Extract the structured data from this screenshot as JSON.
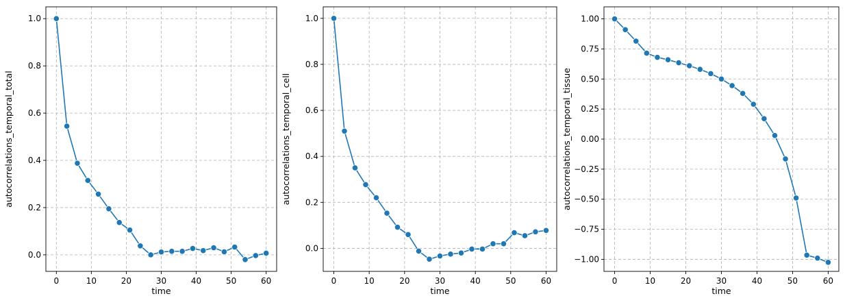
{
  "colors": {
    "series": "#1f77b4",
    "grid": "#b0b0b0"
  },
  "chart_data": [
    {
      "type": "line",
      "title": "",
      "xlabel": "time",
      "ylabel": "autocorrelations_temporal_total",
      "xlim": [
        -3,
        63
      ],
      "ylim": [
        -0.07,
        1.05
      ],
      "xticks": [
        0,
        10,
        20,
        30,
        40,
        50,
        60
      ],
      "xtick_labels": [
        "0",
        "10",
        "20",
        "30",
        "40",
        "50",
        "60"
      ],
      "yticks": [
        0.0,
        0.2,
        0.4,
        0.6,
        0.8,
        1.0
      ],
      "ytick_labels": [
        "0.0",
        "0.2",
        "0.4",
        "0.6",
        "0.8",
        "1.0"
      ],
      "grid": true,
      "marker": "circle",
      "x": [
        0,
        3,
        6,
        9,
        12,
        15,
        18,
        21,
        24,
        27,
        30,
        33,
        36,
        39,
        42,
        45,
        48,
        51,
        54,
        57,
        60
      ],
      "y": [
        1.0,
        0.545,
        0.388,
        0.315,
        0.257,
        0.195,
        0.137,
        0.105,
        0.038,
        0.0,
        0.012,
        0.015,
        0.015,
        0.027,
        0.018,
        0.03,
        0.013,
        0.033,
        -0.02,
        -0.003,
        0.007
      ]
    },
    {
      "type": "line",
      "title": "",
      "xlabel": "time",
      "ylabel": "autocorrelations_temporal_cell",
      "xlim": [
        -3,
        63
      ],
      "ylim": [
        -0.1,
        1.05
      ],
      "xticks": [
        0,
        10,
        20,
        30,
        40,
        50,
        60
      ],
      "xtick_labels": [
        "0",
        "10",
        "20",
        "30",
        "40",
        "50",
        "60"
      ],
      "yticks": [
        0.0,
        0.2,
        0.4,
        0.6,
        0.8,
        1.0
      ],
      "ytick_labels": [
        "0.0",
        "0.2",
        "0.4",
        "0.6",
        "0.8",
        "1.0"
      ],
      "grid": true,
      "marker": "circle",
      "x": [
        0,
        3,
        6,
        9,
        12,
        15,
        18,
        21,
        24,
        27,
        30,
        33,
        36,
        39,
        42,
        45,
        48,
        51,
        54,
        57,
        60
      ],
      "y": [
        1.0,
        0.51,
        0.35,
        0.277,
        0.22,
        0.153,
        0.092,
        0.06,
        -0.012,
        -0.047,
        -0.033,
        -0.025,
        -0.02,
        -0.003,
        -0.003,
        0.02,
        0.02,
        0.068,
        0.055,
        0.072,
        0.078
      ]
    },
    {
      "type": "line",
      "title": "",
      "xlabel": "time",
      "ylabel": "autocorrelations_temporal_tissue",
      "xlim": [
        -3,
        63
      ],
      "ylim": [
        -1.1,
        1.1
      ],
      "xticks": [
        0,
        10,
        20,
        30,
        40,
        50,
        60
      ],
      "xtick_labels": [
        "0",
        "10",
        "20",
        "30",
        "40",
        "50",
        "60"
      ],
      "yticks": [
        -1.0,
        -0.75,
        -0.5,
        -0.25,
        0.0,
        0.25,
        0.5,
        0.75,
        1.0
      ],
      "ytick_labels": [
        "−1.00",
        "−0.75",
        "−0.50",
        "−0.25",
        "0.00",
        "0.25",
        "0.50",
        "0.75",
        "1.00"
      ],
      "grid": true,
      "marker": "circle",
      "x": [
        0,
        3,
        6,
        9,
        12,
        15,
        18,
        21,
        24,
        27,
        30,
        33,
        36,
        39,
        42,
        45,
        48,
        51,
        54,
        57,
        60
      ],
      "y": [
        1.0,
        0.91,
        0.815,
        0.715,
        0.68,
        0.66,
        0.635,
        0.61,
        0.58,
        0.545,
        0.5,
        0.445,
        0.38,
        0.29,
        0.17,
        0.03,
        -0.165,
        -0.49,
        -0.965,
        -0.99,
        -1.025
      ]
    }
  ]
}
